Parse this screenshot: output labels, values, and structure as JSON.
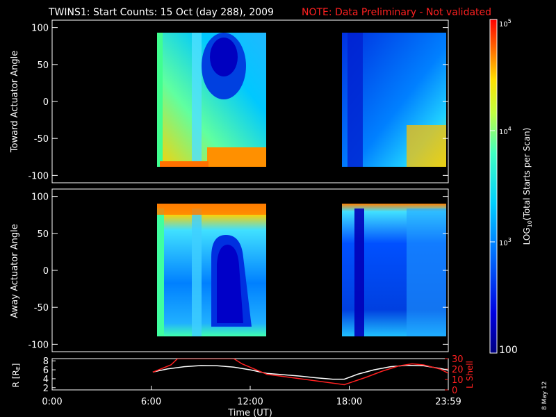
{
  "title": "TWINS1: Start Counts: 15 Oct (day 288), 2009",
  "note": "NOTE: Data Preliminary - Not validated",
  "date_stamp": "8 May 12",
  "colors": {
    "background": "#000000",
    "axes": "#ffffff",
    "note": "#ff2020",
    "lshell": "#ff2020"
  },
  "chart_data": [
    {
      "type": "heatmap",
      "panel": "top",
      "ylabel": "Toward Actuator Angle",
      "ylim": [
        -110,
        110
      ],
      "yticks": [
        "100",
        "50",
        "0",
        "-50",
        "-100"
      ],
      "ytick_values": [
        100,
        50,
        0,
        -50,
        -100
      ],
      "data_blocks_hours": [
        [
          6.1,
          13.0
        ],
        [
          17.7,
          24.0
        ]
      ]
    },
    {
      "type": "heatmap",
      "panel": "middle",
      "ylabel": "Away Actuator Angle",
      "ylim": [
        -110,
        110
      ],
      "yticks": [
        "100",
        "50",
        "0",
        "-50",
        "-100"
      ],
      "ytick_values": [
        100,
        50,
        0,
        -50,
        -100
      ],
      "data_blocks_hours": [
        [
          6.1,
          13.0
        ],
        [
          17.7,
          24.0
        ]
      ]
    },
    {
      "type": "line",
      "panel": "bottom",
      "ylabel_left": "R [R",
      "ylabel_left_sub": "E",
      "ylabel_left_close": "]",
      "yticks_left": [
        "8",
        "6",
        "4",
        "2"
      ],
      "ytick_left_values": [
        8,
        6,
        4,
        2
      ],
      "ylim_left": [
        1.5,
        8.5
      ],
      "ylabel_right": "L Shell",
      "yticks_right": [
        "30",
        "20",
        "10",
        "0"
      ],
      "ytick_right_values": [
        30,
        20,
        10,
        0
      ],
      "ylim_right": [
        0,
        30
      ],
      "xlabel": "Time (UT)",
      "xticks": [
        "0:00",
        "6:00",
        "12:00",
        "18:00",
        "23:59"
      ],
      "xtick_values": [
        0,
        6,
        12,
        18,
        24
      ],
      "xlim": [
        0,
        24
      ],
      "series": [
        {
          "name": "R",
          "color": "#ffffff",
          "x": [
            6.1,
            7,
            8,
            9,
            10,
            11,
            12,
            13,
            14,
            15,
            16,
            17,
            17.7,
            18.5,
            19.5,
            20.5,
            21.5,
            22.5,
            23.5,
            24
          ],
          "y": [
            5.5,
            6.2,
            6.7,
            6.95,
            6.9,
            6.6,
            6.0,
            5.2,
            4.9,
            4.6,
            4.2,
            3.9,
            3.9,
            5.0,
            6.0,
            6.7,
            7.0,
            6.9,
            6.3,
            5.9
          ]
        },
        {
          "name": "L Shell",
          "color": "#ff2020",
          "x": [
            6.1,
            7.2,
            7.6,
            11.0,
            11.5,
            13.0,
            17.7,
            19.0,
            20.0,
            21.0,
            21.8,
            22.5,
            23.5,
            24
          ],
          "y": [
            17,
            24,
            30,
            30,
            25,
            15,
            5,
            12,
            18,
            23,
            25,
            24,
            20,
            16
          ]
        }
      ]
    }
  ],
  "colorbar": {
    "label_prefix": "LOG",
    "label_sub": "10",
    "label_suffix": "(Total Starts per Scan)",
    "tick_labels": [
      {
        "base": "10",
        "exp": "5"
      },
      {
        "base": "10",
        "exp": "4"
      },
      {
        "base": "10",
        "exp": "3"
      },
      {
        "base": "100",
        "exp": ""
      }
    ],
    "log_range": [
      2,
      5
    ],
    "tick_log_values": [
      5,
      4,
      3,
      2
    ]
  }
}
